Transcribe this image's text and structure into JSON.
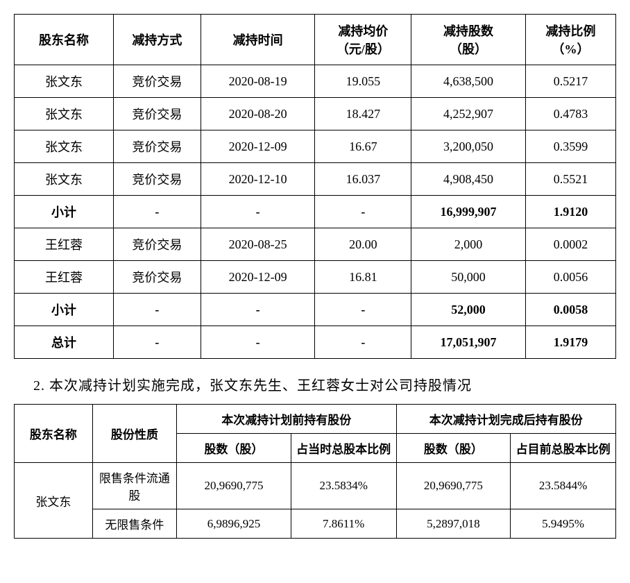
{
  "table1": {
    "columns": [
      "股东名称",
      "减持方式",
      "减持时间",
      "减持均价\n（元/股）",
      "减持股数\n（股）",
      "减持比例\n（%）"
    ],
    "rows": [
      {
        "cells": [
          "张文东",
          "竞价交易",
          "2020-08-19",
          "19.055",
          "4,638,500",
          "0.5217"
        ],
        "bold": false
      },
      {
        "cells": [
          "张文东",
          "竞价交易",
          "2020-08-20",
          "18.427",
          "4,252,907",
          "0.4783"
        ],
        "bold": false
      },
      {
        "cells": [
          "张文东",
          "竞价交易",
          "2020-12-09",
          "16.67",
          "3,200,050",
          "0.3599"
        ],
        "bold": false
      },
      {
        "cells": [
          "张文东",
          "竞价交易",
          "2020-12-10",
          "16.037",
          "4,908,450",
          "0.5521"
        ],
        "bold": false
      },
      {
        "cells": [
          "小计",
          "-",
          "-",
          "-",
          "16,999,907",
          "1.9120"
        ],
        "bold": true
      },
      {
        "cells": [
          "王红蓉",
          "竞价交易",
          "2020-08-25",
          "20.00",
          "2,000",
          "0.0002"
        ],
        "bold": false
      },
      {
        "cells": [
          "王红蓉",
          "竞价交易",
          "2020-12-09",
          "16.81",
          "50,000",
          "0.0056"
        ],
        "bold": false
      },
      {
        "cells": [
          "小计",
          "-",
          "-",
          "-",
          "52,000",
          "0.0058"
        ],
        "bold": true
      },
      {
        "cells": [
          "总计",
          "-",
          "-",
          "-",
          "17,051,907",
          "1.9179"
        ],
        "bold": true
      }
    ]
  },
  "caption": "2. 本次减持计划实施完成，张文东先生、王红蓉女士对公司持股情况",
  "table2": {
    "header_row1": {
      "h1": "股东名称",
      "h2": "股份性质",
      "g1": "本次减持计划前持有股份",
      "g2": "本次减持计划完成后持有股份"
    },
    "header_row2": {
      "h3": "股数（股）",
      "h4": "占当时总股本比例",
      "h5": "股数（股）",
      "h6": "占目前总股本比例"
    },
    "rows": {
      "r1": {
        "name": "张文东",
        "type": "限售条件流通股",
        "v1": "20,9690,775",
        "v2": "23.5834%",
        "v3": "20,9690,775",
        "v4": "23.5844%"
      },
      "r2": {
        "type": "无限售条件",
        "v1": "6,9896,925",
        "v2": "7.8611%",
        "v3": "5,2897,018",
        "v4": "5.9495%"
      }
    }
  }
}
